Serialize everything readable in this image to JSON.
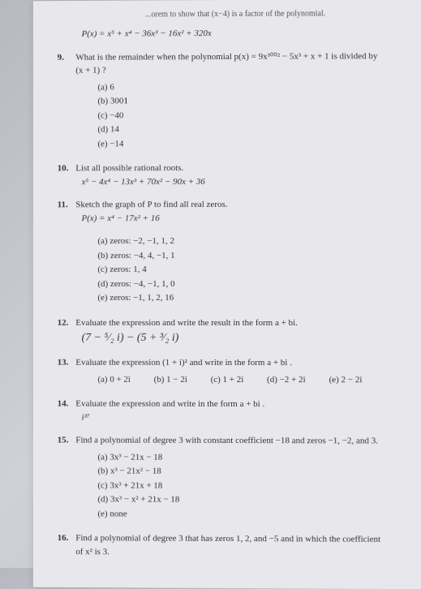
{
  "top_fragment": "...orem to show that (x−4) is a factor of the polynomial.",
  "top_poly": "P(x) = x⁵ + x⁴ − 36x³ − 16x² + 320x",
  "q9": {
    "num": "9.",
    "text": "What is the remainder when the polynomial p(x) = 9x³⁰⁰² − 5x³ + x + 1 is divided by (x + 1) ?",
    "a": "(a)  6",
    "b": "(b)  3001",
    "c": "(c)  −40",
    "d": "(d)  14",
    "e": "(e)  −14"
  },
  "q10": {
    "num": "10.",
    "text": "List all possible rational roots.",
    "poly": "x⁵ − 4x⁴ − 13x³ + 70x² − 90x + 36"
  },
  "q11": {
    "num": "11.",
    "text": "Sketch the graph of P to find all real zeros.",
    "poly": "P(x) = x⁴ − 17x² + 16",
    "a": "(a)  zeros: −2, −1, 1, 2",
    "b": "(b)  zeros: −4, 4, −1, 1",
    "c": "(c)  zeros: 1, 4",
    "d": "(d)  zeros: −4, −1, 1, 0",
    "e": "(e)  zeros: −1, 1, 2, 16"
  },
  "q12": {
    "num": "12.",
    "text": "Evaluate the expression and write the result in the form a + bi.",
    "expr": "(7 − ⁵⁄₂ i) − (5 + ³⁄₂ i)"
  },
  "q13": {
    "num": "13.",
    "text": "Evaluate the expression (1 + i)² and write in the form a + bi .",
    "a": "(a)  0 + 2i",
    "b": "(b)  1 − 2i",
    "c": "(c)  1 + 2i",
    "d": "(d)  −2 + 2i",
    "e": "(e)  2 − 2i"
  },
  "q14": {
    "num": "14.",
    "text": "Evaluate the expression and write in the form a + bi .",
    "expr": "i³⁷"
  },
  "q15": {
    "num": "15.",
    "text": "Find a polynomial of degree 3 with constant coefficient −18 and zeros −1, −2, and 3.",
    "a": "(a)  3x³ − 21x − 18",
    "b": "(b)  x³ − 21x² − 18",
    "c": "(c)  3x³ + 21x + 18",
    "d": "(d)  3x³ − x² + 21x − 18",
    "e": "(e)  none"
  },
  "q16": {
    "num": "16.",
    "text": "Find a polynomial of degree 3 that has zeros 1, 2, and −5 and in which the coefficient of x² is 3."
  }
}
